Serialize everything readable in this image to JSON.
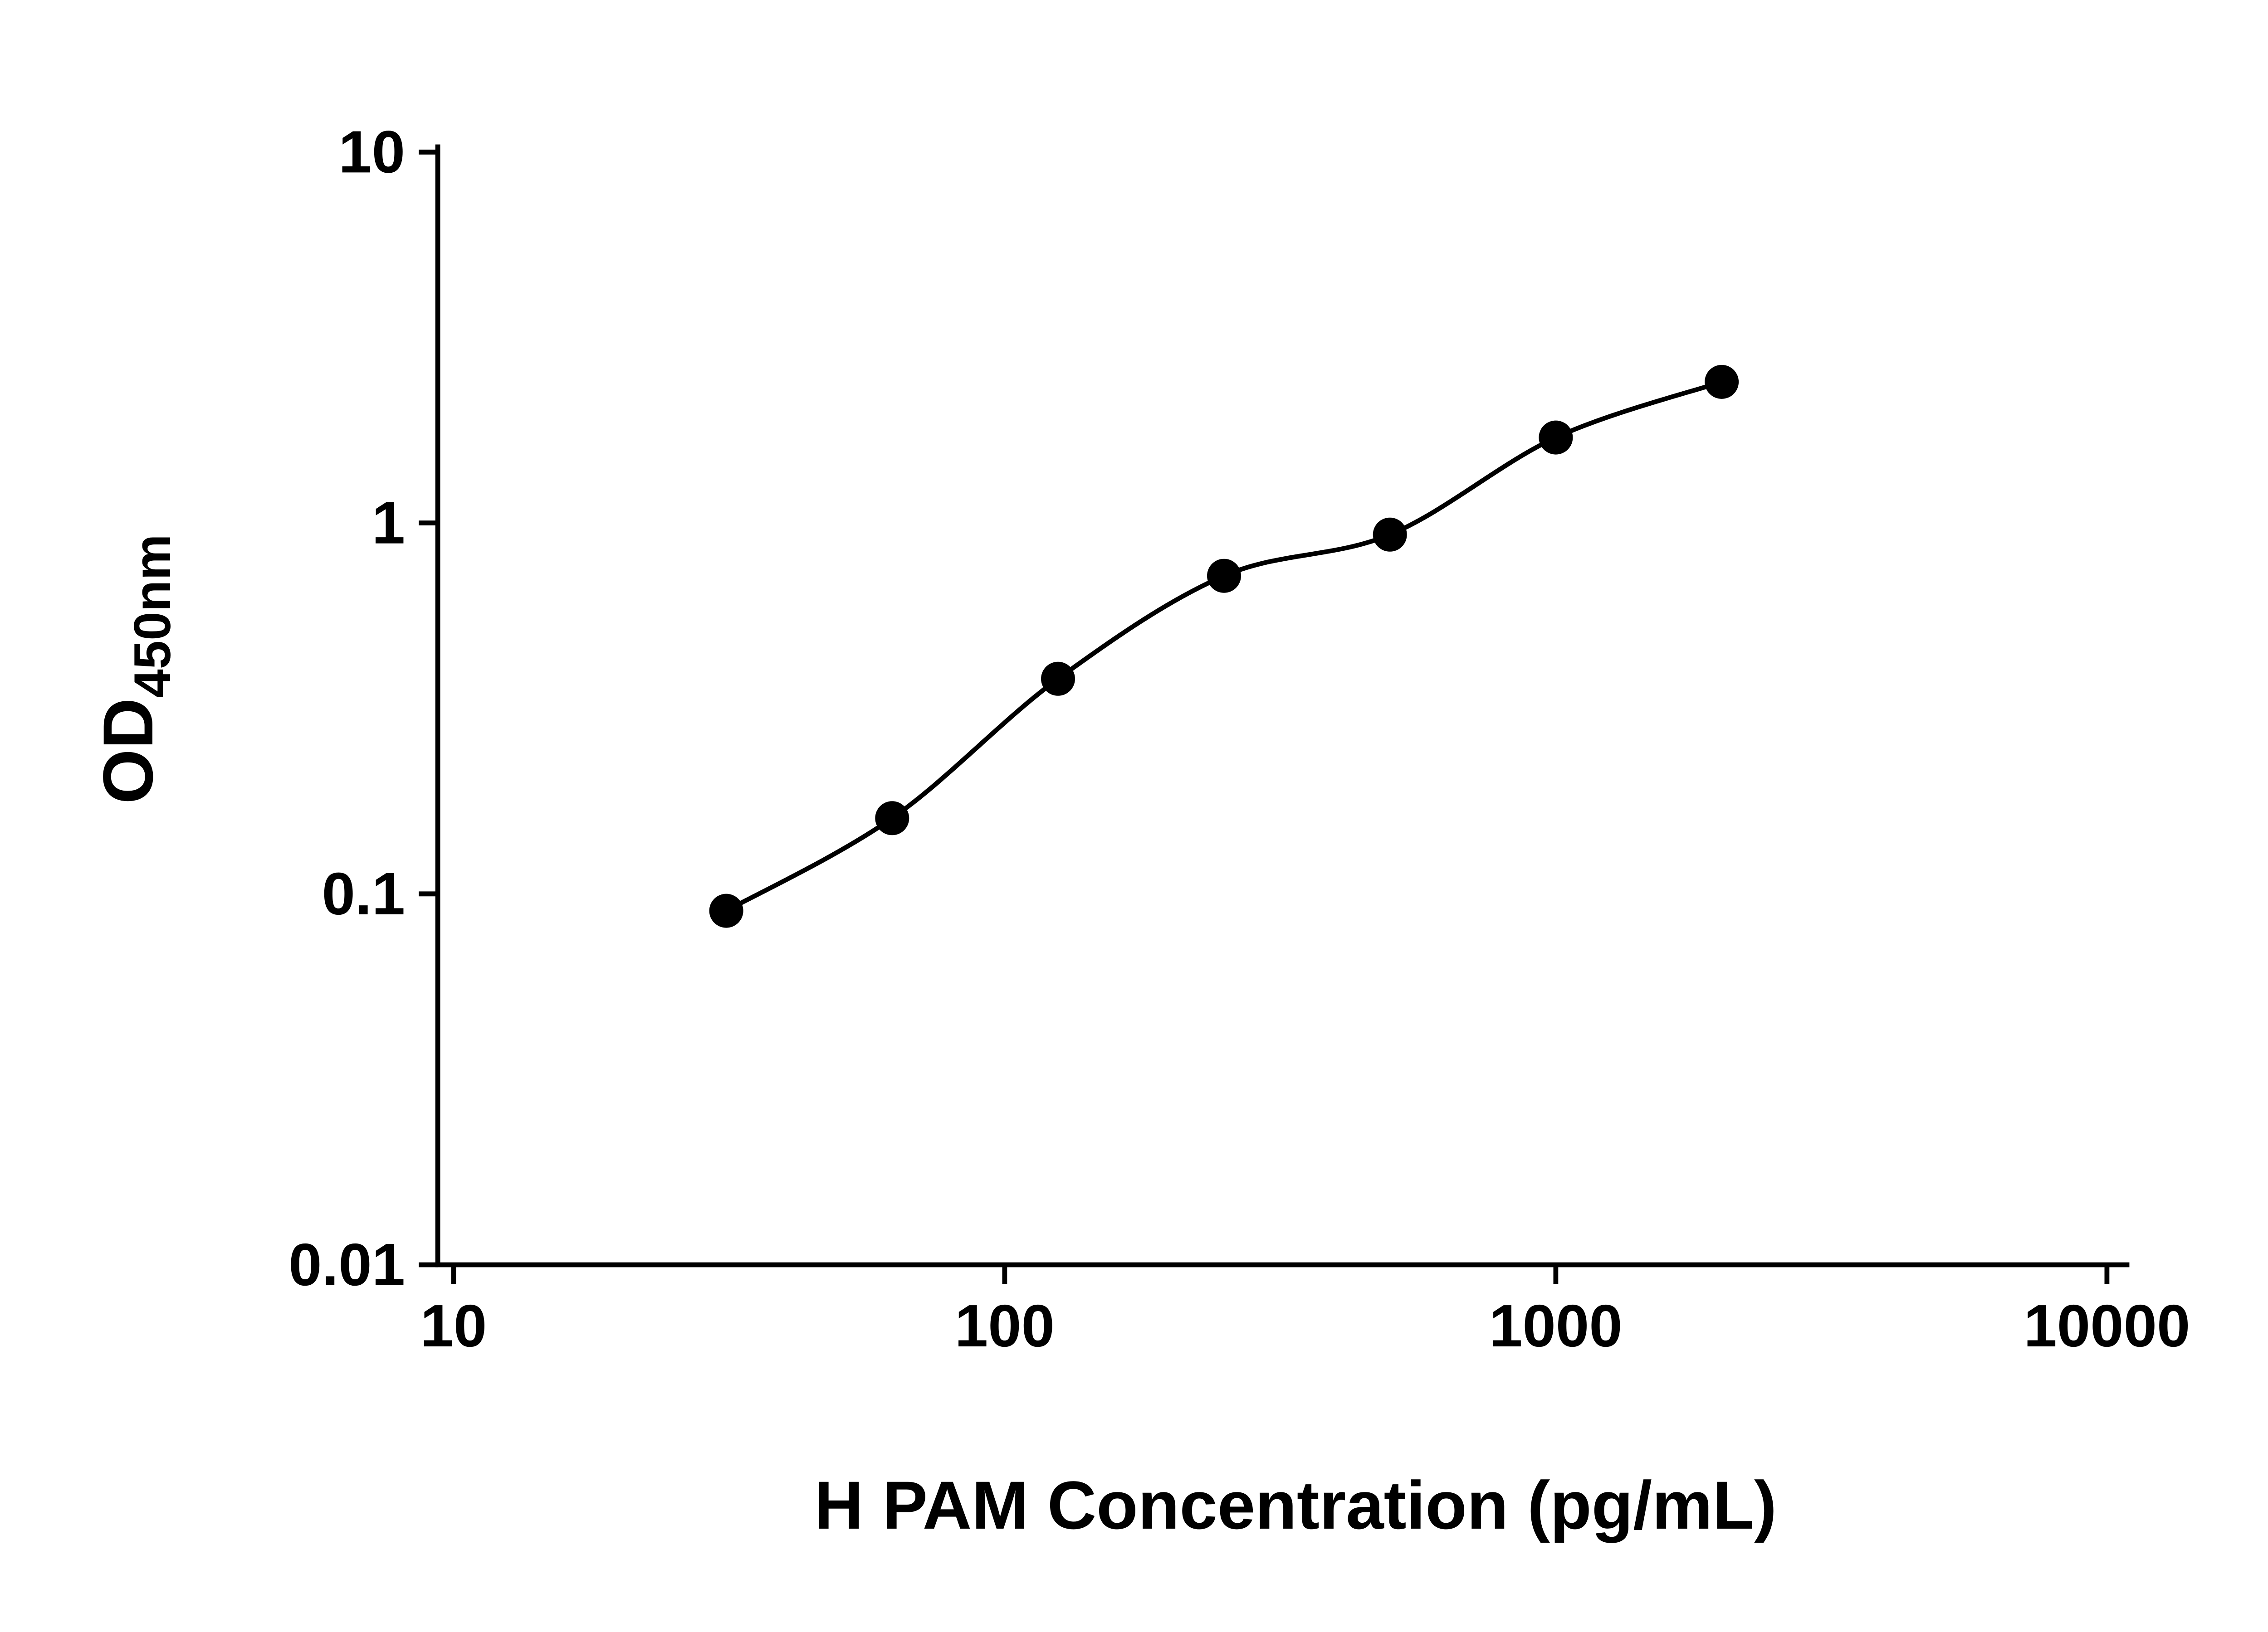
{
  "chart_data": {
    "type": "scatter",
    "title": "",
    "xlabel": "H PAM Concentration (pg/mL)",
    "ylabel_main": "OD",
    "ylabel_sub": "450nm",
    "xscale": "log",
    "yscale": "log",
    "xlim": [
      10,
      10000
    ],
    "ylim": [
      0.01,
      10
    ],
    "x_ticks": [
      10,
      100,
      1000,
      10000
    ],
    "x_tick_labels": [
      "10",
      "100",
      "1000",
      "10000"
    ],
    "y_ticks": [
      0.01,
      0.1,
      1,
      10
    ],
    "y_tick_labels": [
      "0.01",
      "0.1",
      "1",
      "10"
    ],
    "x": [
      31.25,
      62.5,
      125,
      250,
      500,
      1000,
      2000
    ],
    "y": [
      0.09,
      0.16,
      0.38,
      0.72,
      0.93,
      1.7,
      2.4
    ],
    "grid": false,
    "marker": "filled-circle",
    "marker_color": "#000000",
    "line_color": "#000000",
    "axis_color": "#000000",
    "background_color": "#ffffff"
  }
}
